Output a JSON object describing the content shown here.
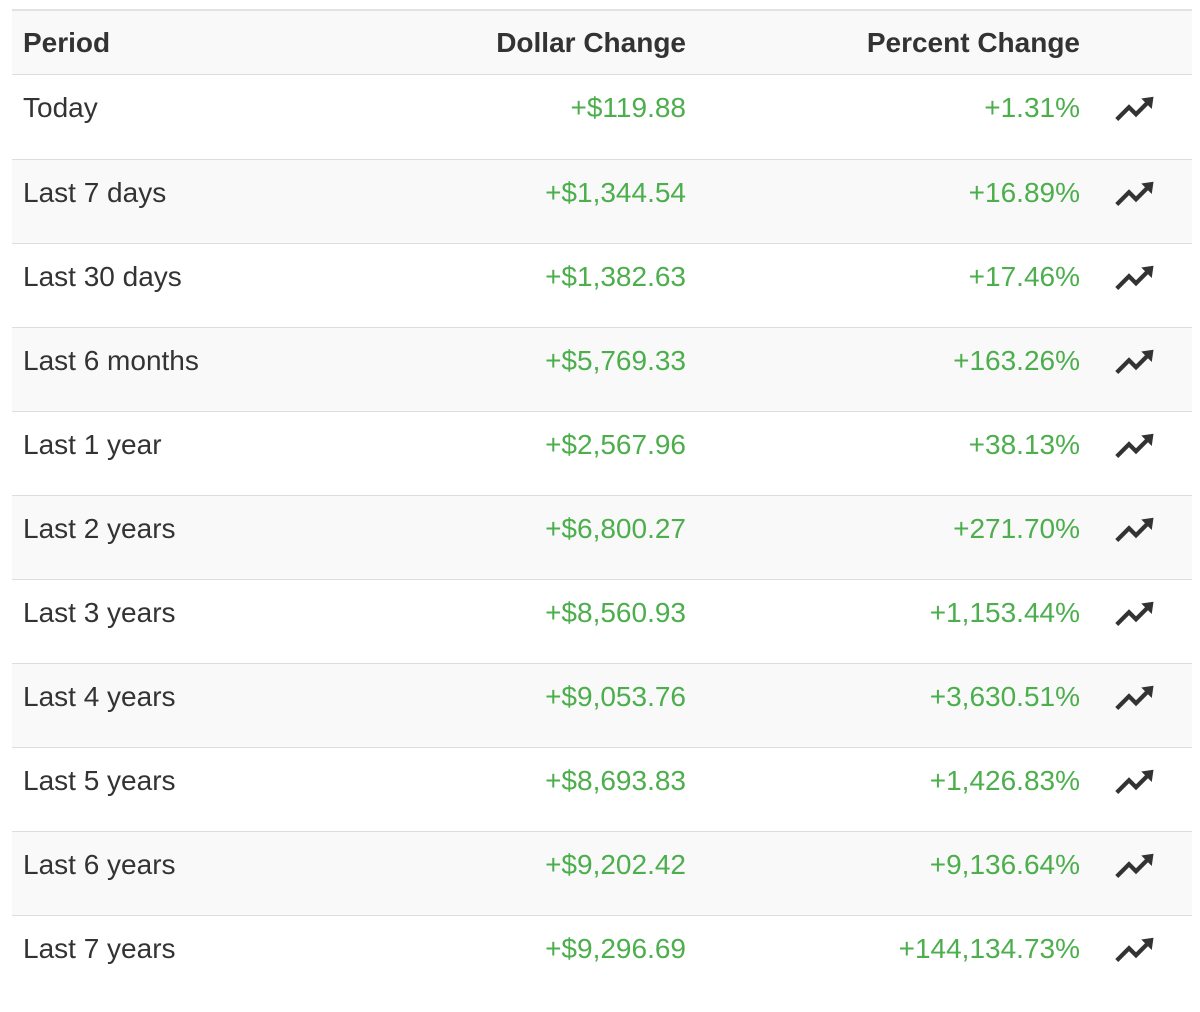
{
  "table": {
    "headers": {
      "period": "Period",
      "dollar": "Dollar Change",
      "percent": "Percent Change"
    },
    "colors": {
      "positive": "#4cae4c",
      "text": "#333333",
      "stripe": "#f9f9f9"
    },
    "rows": [
      {
        "period": "Today",
        "dollar": "+$119.88",
        "percent": "+1.31%",
        "icon": "trending-up-icon"
      },
      {
        "period": "Last 7 days",
        "dollar": "+$1,344.54",
        "percent": "+16.89%",
        "icon": "trending-up-icon"
      },
      {
        "period": "Last 30 days",
        "dollar": "+$1,382.63",
        "percent": "+17.46%",
        "icon": "trending-up-icon"
      },
      {
        "period": "Last 6 months",
        "dollar": "+$5,769.33",
        "percent": "+163.26%",
        "icon": "trending-up-icon"
      },
      {
        "period": "Last 1 year",
        "dollar": "+$2,567.96",
        "percent": "+38.13%",
        "icon": "trending-up-icon"
      },
      {
        "period": "Last 2 years",
        "dollar": "+$6,800.27",
        "percent": "+271.70%",
        "icon": "trending-up-icon"
      },
      {
        "period": "Last 3 years",
        "dollar": "+$8,560.93",
        "percent": "+1,153.44%",
        "icon": "trending-up-icon"
      },
      {
        "period": "Last 4 years",
        "dollar": "+$9,053.76",
        "percent": "+3,630.51%",
        "icon": "trending-up-icon"
      },
      {
        "period": "Last 5 years",
        "dollar": "+$8,693.83",
        "percent": "+1,426.83%",
        "icon": "trending-up-icon"
      },
      {
        "period": "Last 6 years",
        "dollar": "+$9,202.42",
        "percent": "+9,136.64%",
        "icon": "trending-up-icon"
      },
      {
        "period": "Last 7 years",
        "dollar": "+$9,296.69",
        "percent": "+144,134.73%",
        "icon": "trending-up-icon"
      }
    ]
  }
}
